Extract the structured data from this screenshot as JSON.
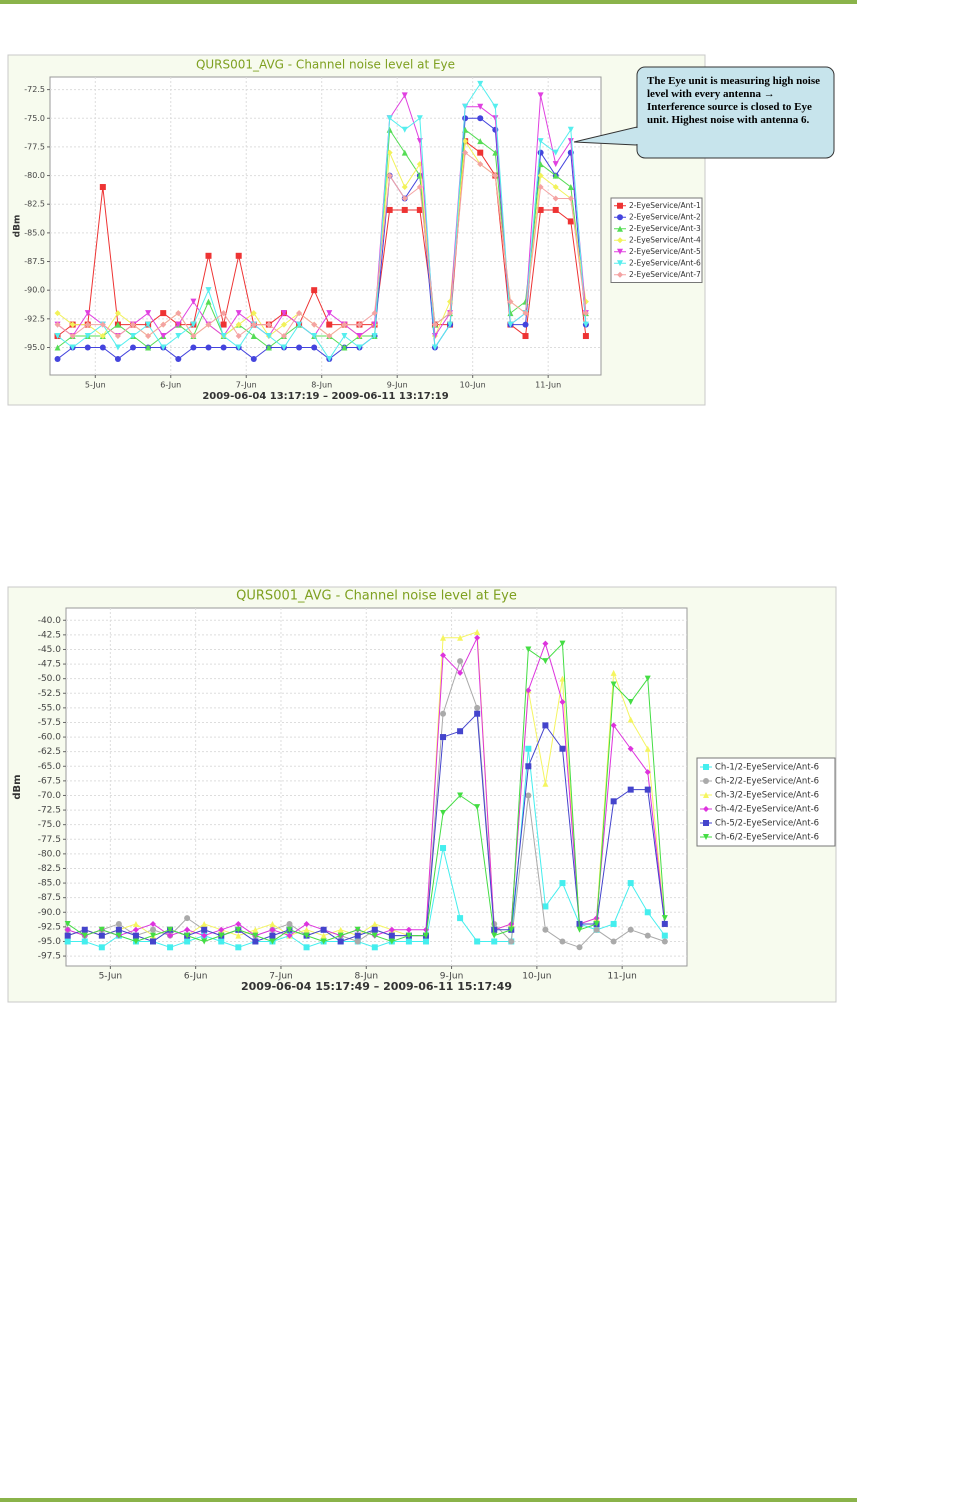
{
  "chart_data": [
    {
      "type": "line",
      "title": "QURS001_AVG - Channel noise level at Eye",
      "ylabel": "dBm",
      "xlabel": "2009-06-04 13:17:19 – 2009-06-11 13:17:19",
      "annotations": [
        "The Eye unit is measuring high noise level with every antenna → Interference source is closed to Eye unit. Highest noise with antenna 6."
      ],
      "x": [
        4.5,
        4.7,
        4.9,
        5.1,
        5.3,
        5.5,
        5.7,
        5.9,
        6.1,
        6.3,
        6.5,
        6.7,
        6.9,
        7.1,
        7.3,
        7.5,
        7.7,
        7.9,
        8.1,
        8.3,
        8.5,
        8.7,
        8.9,
        9.1,
        9.3,
        9.5,
        9.7,
        9.9,
        10.1,
        10.3,
        10.5,
        10.7,
        10.9,
        11.1,
        11.3,
        11.5
      ],
      "xlim": [
        4.4,
        11.7
      ],
      "ylim": [
        -97.4,
        -71.4
      ],
      "grid": true,
      "legend": "right",
      "xticks": [
        {
          "value": 5,
          "label": "5-Jun"
        },
        {
          "value": 6,
          "label": "6-Jun"
        },
        {
          "value": 7,
          "label": "7-Jun"
        },
        {
          "value": 8,
          "label": "8-Jun"
        },
        {
          "value": 9,
          "label": "9-Jun"
        },
        {
          "value": 10,
          "label": "10-Jun"
        },
        {
          "value": 11,
          "label": "11-Jun"
        }
      ],
      "yticks": [
        -72.5,
        {
          "value": -75,
          "label": "-75.0"
        },
        -77.5,
        {
          "value": -80,
          "label": "-80.0"
        },
        -82.5,
        {
          "value": -85,
          "label": "-85.0"
        },
        -87.5,
        {
          "value": -90,
          "label": "-90.0"
        },
        -92.5,
        {
          "value": -95,
          "label": "-95.0"
        }
      ],
      "series": [
        {
          "name": "2-EyeService/Ant-1",
          "color": "#ee3333",
          "marker": "square",
          "values": [
            -94,
            -93,
            -93,
            -81,
            -93,
            -93,
            -93,
            -92,
            -93,
            -93,
            -87,
            -93,
            -87,
            -93,
            -93,
            -92,
            -93,
            -90,
            -93,
            -93,
            -93,
            -93,
            -83,
            -83,
            -83,
            -93,
            -93,
            -77,
            -78,
            -80,
            -93,
            -94,
            -83,
            -83,
            -84,
            -94
          ]
        },
        {
          "name": "2-EyeService/Ant-2",
          "color": "#4444dd",
          "marker": "circle",
          "values": [
            -96,
            -95,
            -95,
            -95,
            -96,
            -95,
            -95,
            -95,
            -96,
            -95,
            -95,
            -95,
            -95,
            -96,
            -95,
            -95,
            -95,
            -95,
            -96,
            -95,
            -95,
            -94,
            -80,
            -82,
            -80,
            -95,
            -93,
            -75,
            -75,
            -76,
            -93,
            -93,
            -78,
            -80,
            -78,
            -93
          ]
        },
        {
          "name": "2-EyeService/Ant-3",
          "color": "#55dd55",
          "marker": "triangle",
          "values": [
            -95,
            -94,
            -94,
            -94,
            -93,
            -94,
            -95,
            -94,
            -93,
            -94,
            -91,
            -94,
            -93,
            -94,
            -95,
            -94,
            -93,
            -94,
            -94,
            -95,
            -94,
            -94,
            -76,
            -78,
            -80,
            -93,
            -92,
            -76,
            -77,
            -78,
            -92,
            -91,
            -79,
            -80,
            -81,
            -92
          ]
        },
        {
          "name": "2-EyeService/Ant-4",
          "color": "#f2f25a",
          "marker": "diamond",
          "values": [
            -92,
            -93,
            -93,
            -94,
            -92,
            -93,
            -94,
            -93,
            -92,
            -94,
            -93,
            -94,
            -93,
            -92,
            -94,
            -93,
            -92,
            -93,
            -94,
            -93,
            -94,
            -93,
            -78,
            -81,
            -79,
            -94,
            -91,
            -77,
            -79,
            -80,
            -91,
            -92,
            -80,
            -81,
            -82,
            -91
          ]
        },
        {
          "name": "2-EyeService/Ant-5",
          "color": "#e040e0",
          "marker": "triangle-down",
          "values": [
            -93,
            -94,
            -92,
            -93,
            -94,
            -93,
            -92,
            -94,
            -93,
            -91,
            -93,
            -94,
            -92,
            -93,
            -94,
            -92,
            -93,
            -94,
            -92,
            -93,
            -94,
            -93,
            -75,
            -73,
            -77,
            -94,
            -92,
            -74,
            -74,
            -75,
            -93,
            -92,
            -73,
            -79,
            -77,
            -92
          ]
        },
        {
          "name": "2-EyeService/Ant-6",
          "color": "#55eeee",
          "marker": "triangle-down",
          "values": [
            -94,
            -95,
            -94,
            -93,
            -95,
            -94,
            -93,
            -95,
            -94,
            -93,
            -90,
            -94,
            -95,
            -93,
            -94,
            -95,
            -93,
            -94,
            -96,
            -94,
            -95,
            -94,
            -75,
            -76,
            -75,
            -95,
            -93,
            -74,
            -72,
            -74,
            -93,
            -92,
            -77,
            -78,
            -76,
            -93
          ]
        },
        {
          "name": "2-EyeService/Ant-7",
          "color": "#f4a3a3",
          "marker": "diamond",
          "values": [
            -93,
            -94,
            -93,
            -93,
            -94,
            -93,
            -94,
            -93,
            -92,
            -94,
            -93,
            -92,
            -94,
            -93,
            -93,
            -94,
            -92,
            -93,
            -94,
            -93,
            -93,
            -92,
            -80,
            -82,
            -81,
            -93,
            -92,
            -78,
            -79,
            -80,
            -91,
            -92,
            -81,
            -82,
            -82,
            -92
          ]
        }
      ]
    },
    {
      "type": "line",
      "title": "QURS001_AVG - Channel noise level at Eye",
      "ylabel": "dBm",
      "xlabel": "2009-06-04 15:17:49 – 2009-06-11 15:17:49",
      "x": [
        4.5,
        4.7,
        4.9,
        5.1,
        5.3,
        5.5,
        5.7,
        5.9,
        6.1,
        6.3,
        6.5,
        6.7,
        6.9,
        7.1,
        7.3,
        7.5,
        7.7,
        7.9,
        8.1,
        8.3,
        8.5,
        8.7,
        8.9,
        9.1,
        9.3,
        9.5,
        9.7,
        9.9,
        10.1,
        10.3,
        10.5,
        10.7,
        10.9,
        11.1,
        11.3,
        11.5
      ],
      "xlim": [
        4.48,
        11.76
      ],
      "ylim": [
        -99.2,
        -37.9
      ],
      "grid": true,
      "legend": "right",
      "xticks": [
        {
          "value": 5,
          "label": "5-Jun"
        },
        {
          "value": 6,
          "label": "6-Jun"
        },
        {
          "value": 7,
          "label": "7-Jun"
        },
        {
          "value": 8,
          "label": "8-Jun"
        },
        {
          "value": 9,
          "label": "9-Jun"
        },
        {
          "value": 10,
          "label": "10-Jun"
        },
        {
          "value": 11,
          "label": "11-Jun"
        }
      ],
      "yticks": [
        {
          "value": -40,
          "label": "-40.0"
        },
        -42.5,
        {
          "value": -45,
          "label": "-45.0"
        },
        -47.5,
        {
          "value": -50,
          "label": "-50.0"
        },
        -52.5,
        {
          "value": -55,
          "label": "-55.0"
        },
        -57.5,
        {
          "value": -60,
          "label": "-60.0"
        },
        -62.5,
        {
          "value": -65,
          "label": "-65.0"
        },
        -67.5,
        {
          "value": -70,
          "label": "-70.0"
        },
        -72.5,
        {
          "value": -75,
          "label": "-75.0"
        },
        -77.5,
        {
          "value": -80,
          "label": "-80.0"
        },
        -82.5,
        {
          "value": -85,
          "label": "-85.0"
        },
        -87.5,
        {
          "value": -90,
          "label": "-90.0"
        },
        -92.5,
        {
          "value": -95,
          "label": "-95.0"
        },
        -97.5
      ],
      "series": [
        {
          "name": "Ch-1/2-EyeService/Ant-6",
          "color": "#44eeee",
          "marker": "square",
          "values": [
            -95,
            -95,
            -96,
            -94,
            -95,
            -95,
            -96,
            -95,
            -94,
            -95,
            -96,
            -95,
            -95,
            -94,
            -96,
            -95,
            -95,
            -95,
            -96,
            -95,
            -95,
            -95,
            -79,
            -91,
            -95,
            -95,
            -95,
            -62,
            -89,
            -85,
            -92,
            -93,
            -92,
            -85,
            -90,
            -94
          ]
        },
        {
          "name": "Ch-2/2-EyeService/Ant-6",
          "color": "#aaaaaa",
          "marker": "circle",
          "values": [
            -93,
            -94,
            -93,
            -92,
            -94,
            -93,
            -94,
            -91,
            -93,
            -94,
            -93,
            -94,
            -93,
            -92,
            -94,
            -93,
            -94,
            -95,
            -93,
            -94,
            -94,
            -94,
            -56,
            -47,
            -55,
            -92,
            -95,
            -70,
            -93,
            -95,
            -96,
            -93,
            -95,
            -93,
            -94,
            -95
          ]
        },
        {
          "name": "Ch-3/2-EyeService/Ant-6",
          "color": "#f5f560",
          "marker": "triangle",
          "values": [
            -94,
            -93,
            -94,
            -93,
            -92,
            -94,
            -93,
            -94,
            -92,
            -93,
            -94,
            -93,
            -92,
            -94,
            -93,
            -94,
            -93,
            -94,
            -92,
            -93,
            -94,
            -94,
            -43,
            -43,
            -42,
            -93,
            -92,
            -52,
            -68,
            -50,
            -92,
            -91,
            -49,
            -57,
            -62,
            -92
          ]
        },
        {
          "name": "Ch-4/2-EyeService/Ant-6",
          "color": "#dd33dd",
          "marker": "diamond",
          "values": [
            -93,
            -94,
            -93,
            -94,
            -93,
            -92,
            -94,
            -93,
            -94,
            -93,
            -92,
            -94,
            -93,
            -94,
            -92,
            -93,
            -94,
            -93,
            -94,
            -93,
            -93,
            -93,
            -46,
            -49,
            -43,
            -93,
            -92,
            -52,
            -44,
            -54,
            -92,
            -91,
            -58,
            -62,
            -66,
            -92
          ]
        },
        {
          "name": "Ch-5/2-EyeService/Ant-6",
          "color": "#4444cc",
          "marker": "square",
          "values": [
            -94,
            -93,
            -94,
            -93,
            -94,
            -95,
            -93,
            -94,
            -93,
            -94,
            -93,
            -95,
            -94,
            -93,
            -94,
            -93,
            -95,
            -94,
            -93,
            -94,
            -94,
            -94,
            -60,
            -59,
            -56,
            -93,
            -93,
            -65,
            -58,
            -62,
            -92,
            -92,
            -71,
            -69,
            -69,
            -92
          ]
        },
        {
          "name": "Ch-6/2-EyeService/Ant-6",
          "color": "#44dd44",
          "marker": "triangle-down",
          "values": [
            -92,
            -94,
            -93,
            -94,
            -95,
            -94,
            -93,
            -94,
            -95,
            -94,
            -93,
            -94,
            -95,
            -93,
            -94,
            -95,
            -94,
            -93,
            -94,
            -95,
            -94,
            -94,
            -73,
            -70,
            -72,
            -94,
            -93,
            -45,
            -47,
            -44,
            -93,
            -92,
            -51,
            -54,
            -50,
            -91
          ]
        }
      ]
    }
  ]
}
